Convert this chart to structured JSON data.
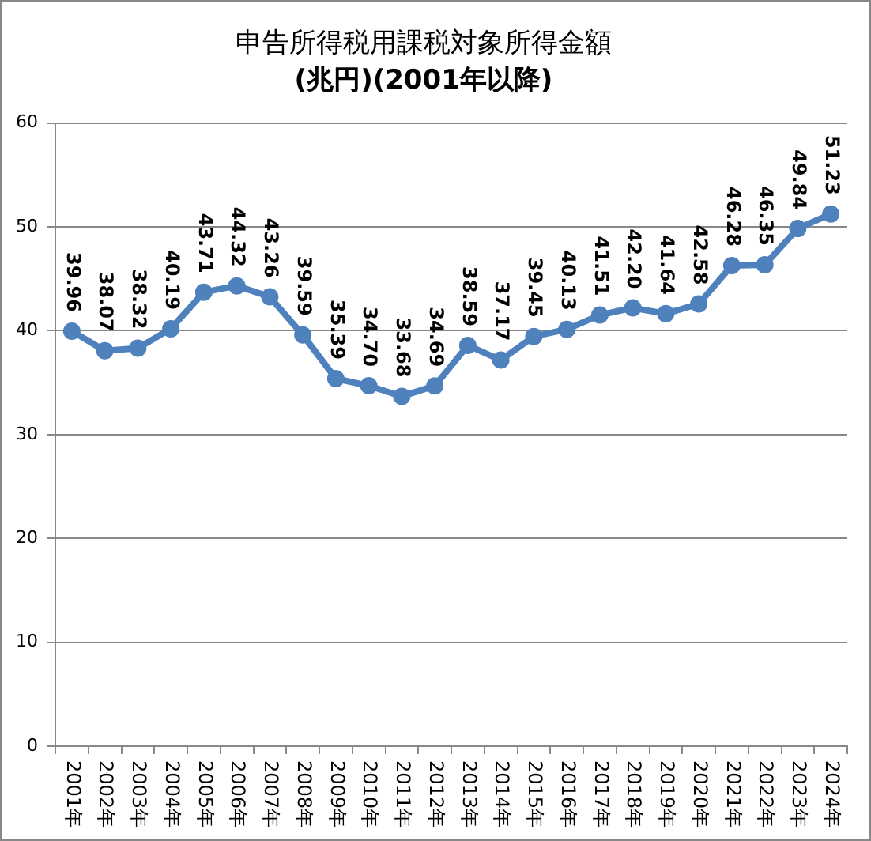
{
  "chart_data": {
    "type": "line",
    "title": "申告所得税用課税対象所得金額",
    "subtitle": "(兆円)(2001年以降)",
    "categories": [
      "2001年",
      "2002年",
      "2003年",
      "2004年",
      "2005年",
      "2006年",
      "2007年",
      "2008年",
      "2009年",
      "2010年",
      "2011年",
      "2012年",
      "2013年",
      "2014年",
      "2015年",
      "2016年",
      "2017年",
      "2018年",
      "2019年",
      "2020年",
      "2021年",
      "2022年",
      "2023年",
      "2024年"
    ],
    "series": [
      {
        "color": "#4f81bd",
        "values": [
          39.96,
          38.07,
          38.32,
          40.19,
          43.71,
          44.32,
          43.26,
          39.59,
          35.39,
          34.7,
          33.68,
          34.69,
          38.59,
          37.17,
          39.45,
          40.13,
          41.51,
          42.2,
          41.64,
          42.58,
          46.28,
          46.35,
          49.84,
          51.23
        ],
        "value_labels": [
          "39.96",
          "38.07",
          "38.32",
          "40.19",
          "43.71",
          "44.32",
          "43.26",
          "39.59",
          "35.39",
          "34.70",
          "33.68",
          "34.69",
          "38.59",
          "37.17",
          "39.45",
          "40.13",
          "41.51",
          "42.20",
          "41.64",
          "42.58",
          "46.28",
          "46.35",
          "49.84",
          "51.23"
        ]
      }
    ],
    "ylim": [
      0,
      60
    ],
    "yticks": [
      0,
      10,
      20,
      30,
      40,
      50,
      60
    ],
    "grid": "y",
    "marker": "circle",
    "line_style": "solid"
  }
}
